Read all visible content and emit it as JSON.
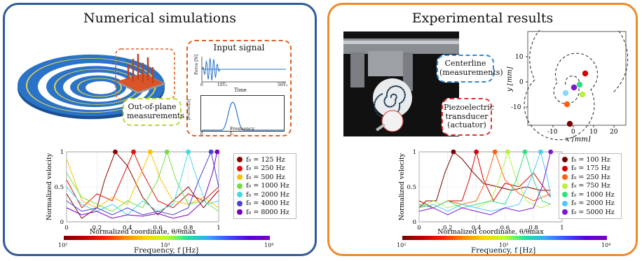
{
  "left_panel": {
    "title": "Numerical simulations",
    "out_of_plane_label": "Out-of-plane measurements",
    "input_signal": {
      "title": "Input signal",
      "top_ylabel": "Force [N]",
      "top_xlabel": "Time",
      "top_xticks": [
        "0",
        "10T₀",
        "50T₀"
      ],
      "bottom_ylabel": "|Force(f₀)|",
      "bottom_xlabel": "Frequency",
      "bottom_xticks": [
        "0",
        "f₀"
      ]
    },
    "colorbar": {
      "ticks": [
        "10²",
        "10³",
        "10⁴"
      ],
      "label": "Frequency, f [Hz]"
    }
  },
  "right_panel": {
    "title": "Experimental results",
    "centerline_label": "Centerline (measurements)",
    "piezo_label": "Piezoelectric transducer (actuator)",
    "spiral_plot": {
      "xlabel": "x [mm]",
      "ylabel": "y [mm]",
      "xticks": [
        "-10",
        "0",
        "10",
        "20"
      ],
      "yticks": [
        "10",
        "0",
        "-10"
      ],
      "point_colors": [
        "#d40000",
        "#30e080",
        "#7a18d0",
        "#b8f040",
        "#8ad8ff",
        "#ff6010",
        "#7a0000"
      ]
    },
    "colorbar": {
      "ticks": [
        "10²",
        "10³",
        "10⁴"
      ],
      "label": "Frequency, f [Hz]"
    }
  },
  "chart_data": [
    {
      "type": "line",
      "xlabel": "Normalized coordinate, θ/θmax",
      "ylabel": "Normalized velocity",
      "xlim": [
        0,
        1
      ],
      "ylim": [
        0,
        1
      ],
      "xticks": [
        "0",
        "0.2",
        "0.4",
        "0.6",
        "0.8",
        "1"
      ],
      "yticks": [
        "0",
        "0.5",
        "1"
      ],
      "legend_position": "right",
      "series": [
        {
          "name": "f₀ = 125 Hz",
          "color": "#8b0000",
          "peak_x": 0.32,
          "x": [
            0,
            0.1,
            0.2,
            0.25,
            0.32,
            0.4,
            0.5,
            0.6,
            0.7,
            0.8,
            0.9,
            1.0
          ],
          "values": [
            0.4,
            0.05,
            0.2,
            0.6,
            1.0,
            0.8,
            0.35,
            0.1,
            0.3,
            0.5,
            0.2,
            0.45
          ]
        },
        {
          "name": "f₀ = 250 Hz",
          "color": "#e01010",
          "peak_x": 0.44,
          "x": [
            0,
            0.1,
            0.2,
            0.3,
            0.38,
            0.44,
            0.5,
            0.6,
            0.7,
            0.8,
            0.9,
            1.0
          ],
          "values": [
            0.6,
            0.2,
            0.4,
            0.3,
            0.7,
            1.0,
            0.7,
            0.3,
            0.2,
            0.4,
            0.3,
            0.5
          ]
        },
        {
          "name": "f₀ = 500 Hz",
          "color": "#ffc000",
          "peak_x": 0.55,
          "x": [
            0,
            0.1,
            0.2,
            0.3,
            0.4,
            0.48,
            0.55,
            0.62,
            0.7,
            0.8,
            0.9,
            1.0
          ],
          "values": [
            0.9,
            0.3,
            0.2,
            0.35,
            0.25,
            0.65,
            1.0,
            0.6,
            0.3,
            0.25,
            0.35,
            0.2
          ]
        },
        {
          "name": "f₀ = 1000 Hz",
          "color": "#70e040",
          "peak_x": 0.66,
          "x": [
            0,
            0.1,
            0.2,
            0.3,
            0.4,
            0.5,
            0.6,
            0.66,
            0.72,
            0.8,
            0.9,
            1.0
          ],
          "values": [
            0.7,
            0.35,
            0.25,
            0.15,
            0.3,
            0.2,
            0.6,
            1.0,
            0.6,
            0.25,
            0.3,
            0.15
          ]
        },
        {
          "name": "f₀ = 2000 Hz",
          "color": "#40d8e8",
          "peak_x": 0.8,
          "x": [
            0,
            0.1,
            0.2,
            0.3,
            0.4,
            0.5,
            0.6,
            0.7,
            0.75,
            0.8,
            0.86,
            0.92,
            1.0
          ],
          "values": [
            0.5,
            0.25,
            0.15,
            0.25,
            0.1,
            0.3,
            0.15,
            0.25,
            0.6,
            1.0,
            0.6,
            0.25,
            0.3
          ]
        },
        {
          "name": "f₀ = 4000 Hz",
          "color": "#4a40d8",
          "peak_x": 0.95,
          "x": [
            0,
            0.1,
            0.2,
            0.3,
            0.4,
            0.5,
            0.6,
            0.7,
            0.8,
            0.87,
            0.95,
            1.0
          ],
          "values": [
            0.3,
            0.15,
            0.2,
            0.1,
            0.2,
            0.1,
            0.15,
            0.1,
            0.2,
            0.6,
            1.0,
            0.5
          ]
        },
        {
          "name": "f₀ = 8000 Hz",
          "color": "#7a00c0",
          "peak_x": 0.99,
          "x": [
            0,
            0.1,
            0.2,
            0.3,
            0.4,
            0.5,
            0.6,
            0.7,
            0.8,
            0.9,
            0.96,
            0.99
          ],
          "values": [
            0.2,
            0.1,
            0.15,
            0.05,
            0.1,
            0.08,
            0.12,
            0.05,
            0.1,
            0.3,
            0.7,
            1.0
          ]
        }
      ]
    },
    {
      "type": "line",
      "xlabel": "Normalized coordinate, θ/θmax",
      "ylabel": "Normalized velocity",
      "xlim": [
        0,
        1
      ],
      "ylim": [
        0,
        1
      ],
      "xticks": [
        "0",
        "0.2",
        "0.4",
        "0.6",
        "0.8",
        "1"
      ],
      "yticks": [
        "0",
        "0.5",
        "1"
      ],
      "legend_position": "right",
      "series": [
        {
          "name": "f₀ = 100 Hz",
          "color": "#7a0000",
          "peak_x": 0.24,
          "x": [
            0,
            0.05,
            0.12,
            0.18,
            0.24,
            0.3,
            0.38,
            0.45,
            0.55,
            0.65,
            0.75,
            0.85,
            0.92
          ],
          "values": [
            0.2,
            0.3,
            0.3,
            0.7,
            1.0,
            0.9,
            0.7,
            0.55,
            0.5,
            0.45,
            0.5,
            0.45,
            0.45
          ]
        },
        {
          "name": "f₀ = 175 Hz",
          "color": "#d40000",
          "peak_x": 0.4,
          "x": [
            0,
            0.1,
            0.2,
            0.3,
            0.35,
            0.4,
            0.45,
            0.52,
            0.6,
            0.7,
            0.8,
            0.92
          ],
          "values": [
            0.3,
            0.2,
            0.3,
            0.3,
            0.6,
            1.0,
            0.6,
            0.3,
            0.55,
            0.5,
            0.7,
            0.35
          ]
        },
        {
          "name": "f₀ = 250 Hz",
          "color": "#ff6010",
          "peak_x": 0.53,
          "x": [
            0,
            0.1,
            0.2,
            0.3,
            0.4,
            0.47,
            0.53,
            0.6,
            0.7,
            0.8,
            0.92
          ],
          "values": [
            0.25,
            0.2,
            0.3,
            0.25,
            0.3,
            0.6,
            1.0,
            0.6,
            0.4,
            0.3,
            0.4
          ]
        },
        {
          "name": "f₀ = 750 Hz",
          "color": "#b8f040",
          "peak_x": 0.62,
          "x": [
            0,
            0.1,
            0.2,
            0.3,
            0.4,
            0.5,
            0.56,
            0.62,
            0.68,
            0.75,
            0.85,
            0.92
          ],
          "values": [
            0.2,
            0.3,
            0.2,
            0.25,
            0.2,
            0.3,
            0.6,
            1.0,
            0.6,
            0.3,
            0.2,
            0.25
          ]
        },
        {
          "name": "f₀ = 1000 Hz",
          "color": "#30e080",
          "peak_x": 0.74,
          "x": [
            0,
            0.1,
            0.2,
            0.3,
            0.4,
            0.5,
            0.6,
            0.68,
            0.74,
            0.8,
            0.86,
            0.92
          ],
          "values": [
            0.25,
            0.2,
            0.3,
            0.2,
            0.25,
            0.3,
            0.25,
            0.6,
            1.0,
            0.6,
            0.3,
            0.25
          ]
        },
        {
          "name": "f₀ = 2000 Hz",
          "color": "#50c8ff",
          "peak_x": 0.85,
          "x": [
            0,
            0.1,
            0.2,
            0.3,
            0.4,
            0.5,
            0.6,
            0.7,
            0.78,
            0.85,
            0.9,
            0.92
          ],
          "values": [
            0.2,
            0.25,
            0.15,
            0.25,
            0.2,
            0.15,
            0.2,
            0.25,
            0.6,
            1.0,
            0.6,
            0.35
          ]
        },
        {
          "name": "f₀ = 5000 Hz",
          "color": "#7a18d0",
          "peak_x": 0.92,
          "x": [
            0,
            0.1,
            0.2,
            0.3,
            0.4,
            0.5,
            0.6,
            0.7,
            0.8,
            0.86,
            0.92
          ],
          "values": [
            0.15,
            0.2,
            0.1,
            0.2,
            0.15,
            0.1,
            0.2,
            0.15,
            0.2,
            0.5,
            1.0
          ]
        }
      ]
    }
  ]
}
